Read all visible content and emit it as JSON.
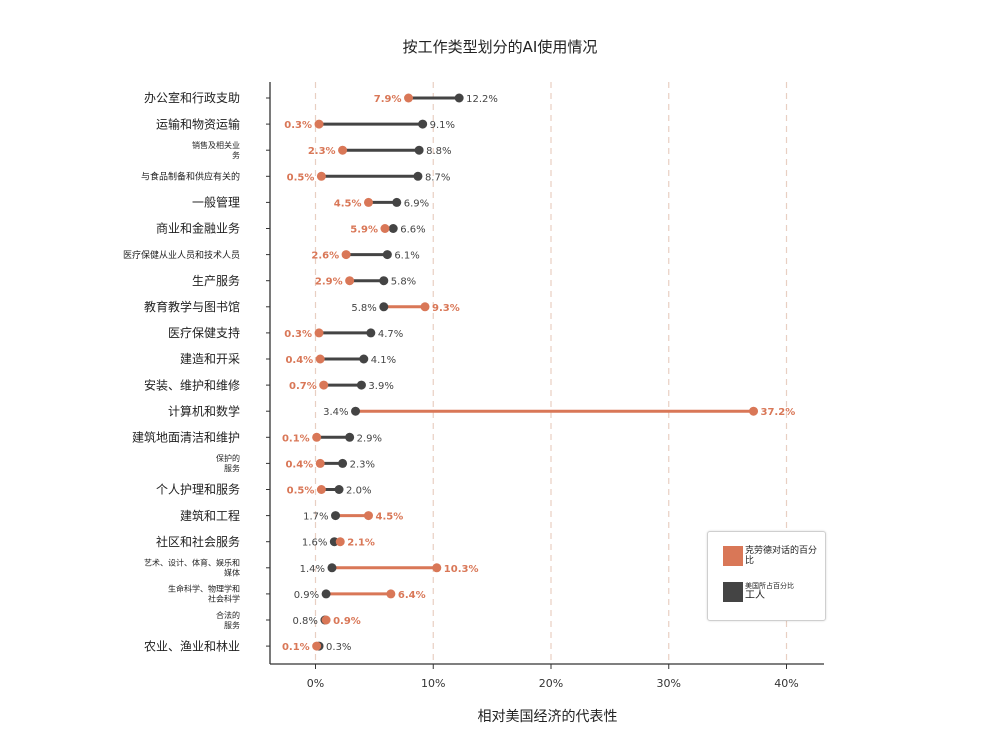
{
  "chart_data": {
    "type": "dumbbell",
    "title": "按工作类型划分的AI使用情况",
    "xlabel": "相对美国经济的代表性",
    "xlim": [
      -3.8,
      43
    ],
    "x_ticks": [
      0,
      10,
      20,
      30,
      40
    ],
    "x_tick_labels": [
      "0%",
      "10%",
      "20%",
      "30%",
      "40%"
    ],
    "grid": "vertical-dashed",
    "legend_position": "bottom-right",
    "colors": {
      "claude": "#D97757",
      "workers": "#444444",
      "grid": "#e8cfc2",
      "axis": "#333333"
    },
    "series": [
      {
        "key": "claude",
        "legend_label": "克劳德对话的百分比"
      },
      {
        "key": "workers",
        "legend_label_small": "美国所占百分比",
        "legend_label": "工人"
      }
    ],
    "categories": [
      {
        "label_lines": [
          "办公室和行政支助"
        ],
        "claude": 7.9,
        "workers": 12.2,
        "claude_label": "7.9%",
        "workers_label": "12.2%"
      },
      {
        "label_lines": [
          "运输和物资运输"
        ],
        "claude": 0.3,
        "workers": 9.1,
        "claude_label": "0.3%",
        "workers_label": "9.1%"
      },
      {
        "label_lines": [
          "销售及相关业",
          "务"
        ],
        "claude": 2.3,
        "workers": 8.8,
        "claude_label": "2.3%",
        "workers_label": "8.8%"
      },
      {
        "label_lines": [
          "与食品制备和供应有关的"
        ],
        "claude": 0.5,
        "workers": 8.7,
        "claude_label": "0.5%",
        "workers_label": "8.7%"
      },
      {
        "label_lines": [
          "一般管理"
        ],
        "claude": 4.5,
        "workers": 6.9,
        "claude_label": "4.5%",
        "workers_label": "6.9%"
      },
      {
        "label_lines": [
          "商业和金融业务"
        ],
        "claude": 5.9,
        "workers": 6.6,
        "claude_label": "5.9%",
        "workers_label": "6.6%"
      },
      {
        "label_lines": [
          "医疗保健从业人员和技术人员"
        ],
        "claude": 2.6,
        "workers": 6.1,
        "claude_label": "2.6%",
        "workers_label": "6.1%"
      },
      {
        "label_lines": [
          "生产服务"
        ],
        "claude": 2.9,
        "workers": 5.8,
        "claude_label": "2.9%",
        "workers_label": "5.8%"
      },
      {
        "label_lines": [
          "教育教学与图书馆"
        ],
        "claude": 9.3,
        "workers": 5.8,
        "claude_label": "9.3%",
        "workers_label": "5.8%"
      },
      {
        "label_lines": [
          "医疗保健支持"
        ],
        "claude": 0.3,
        "workers": 4.7,
        "claude_label": "0.3%",
        "workers_label": "4.7%"
      },
      {
        "label_lines": [
          "建造和开采"
        ],
        "claude": 0.4,
        "workers": 4.1,
        "claude_label": "0.4%",
        "workers_label": "4.1%"
      },
      {
        "label_lines": [
          "安装、维护和维修"
        ],
        "claude": 0.7,
        "workers": 3.9,
        "claude_label": "0.7%",
        "workers_label": "3.9%"
      },
      {
        "label_lines": [
          "计算机和数学"
        ],
        "claude": 37.2,
        "workers": 3.4,
        "claude_label": "37.2%",
        "workers_label": "3.4%"
      },
      {
        "label_lines": [
          "建筑地面清洁和维护"
        ],
        "claude": 0.1,
        "workers": 2.9,
        "claude_label": "0.1%",
        "workers_label": "2.9%"
      },
      {
        "label_lines": [
          "保护的",
          "服务"
        ],
        "claude": 0.4,
        "workers": 2.3,
        "claude_label": "0.4%",
        "workers_label": "2.3%"
      },
      {
        "label_lines": [
          "个人护理和服务"
        ],
        "claude": 0.5,
        "workers": 2.0,
        "claude_label": "0.5%",
        "workers_label": "2.0%"
      },
      {
        "label_lines": [
          "建筑和工程"
        ],
        "claude": 4.5,
        "workers": 1.7,
        "claude_label": "4.5%",
        "workers_label": "1.7%"
      },
      {
        "label_lines": [
          "社区和社会服务"
        ],
        "claude": 2.1,
        "workers": 1.6,
        "claude_label": "2.1%",
        "workers_label": "1.6%"
      },
      {
        "label_lines": [
          "艺术、设计、体育、娱乐和",
          "媒体"
        ],
        "claude": 10.3,
        "workers": 1.4,
        "claude_label": "10.3%",
        "workers_label": "1.4%"
      },
      {
        "label_lines": [
          "生命科学、物理学和",
          "社会科学"
        ],
        "claude": 6.4,
        "workers": 0.9,
        "claude_label": "6.4%",
        "workers_label": "0.9%"
      },
      {
        "label_lines": [
          "合法的",
          "服务"
        ],
        "claude": 0.9,
        "workers": 0.8,
        "claude_label": "0.9%",
        "workers_label": "0.8%"
      },
      {
        "label_lines": [
          "农业、渔业和林业"
        ],
        "claude": 0.1,
        "workers": 0.3,
        "claude_label": "0.1%",
        "workers_label": "0.3%"
      }
    ]
  }
}
